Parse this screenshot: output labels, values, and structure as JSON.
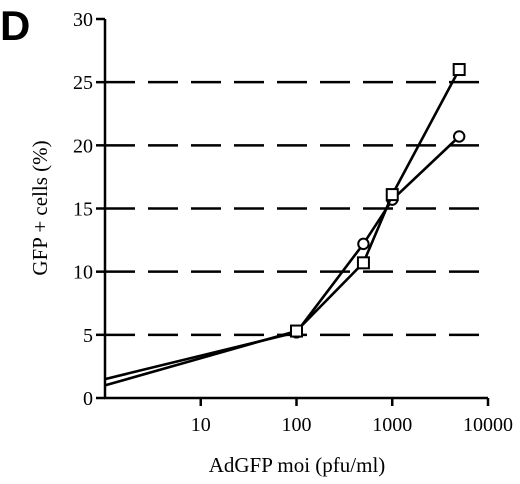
{
  "panel_label": "D",
  "chart_data": {
    "type": "line",
    "title": "",
    "xlabel": "AdGFP moi (pfu/ml)",
    "ylabel": "GFP + cells (%)",
    "x_scale": "log",
    "xlim": [
      1,
      10000
    ],
    "ylim": [
      0,
      30
    ],
    "x_ticks": [
      10,
      100,
      1000,
      10000
    ],
    "x_tick_labels": [
      "10",
      "100",
      "1000",
      "10000"
    ],
    "y_ticks": [
      0,
      5,
      10,
      15,
      20,
      25,
      30
    ],
    "y_tick_labels": [
      "0",
      "5",
      "10",
      "15",
      "20",
      "25",
      "30"
    ],
    "grid": "dashed horizontal lines at y = 5, 10, 15, 20, 25",
    "legend": "none",
    "series": [
      {
        "marker": "circle",
        "x": [
          1,
          100,
          500,
          1000,
          5000
        ],
        "y": [
          1.5,
          5.2,
          12.2,
          15.7,
          20.7
        ]
      },
      {
        "marker": "square",
        "x": [
          1,
          100,
          500,
          1000,
          5000
        ],
        "y": [
          1.0,
          5.3,
          10.7,
          16.1,
          26.0
        ]
      }
    ]
  }
}
